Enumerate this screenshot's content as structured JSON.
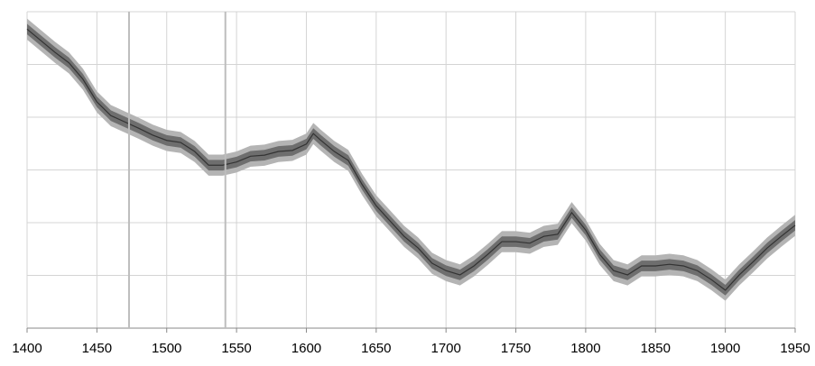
{
  "chart_data": {
    "type": "band-line",
    "x": [
      1400,
      1410,
      1420,
      1430,
      1440,
      1450,
      1460,
      1470,
      1480,
      1490,
      1500,
      1510,
      1520,
      1530,
      1540,
      1550,
      1560,
      1570,
      1580,
      1590,
      1600,
      1605,
      1610,
      1620,
      1630,
      1640,
      1650,
      1660,
      1670,
      1680,
      1690,
      1700,
      1710,
      1720,
      1730,
      1740,
      1750,
      1760,
      1770,
      1780,
      1790,
      1800,
      1810,
      1820,
      1830,
      1840,
      1850,
      1860,
      1870,
      1880,
      1890,
      1900,
      1910,
      1920,
      1930,
      1940,
      1950
    ],
    "values": [
      5.67,
      5.45,
      5.23,
      5.03,
      4.72,
      4.29,
      4.03,
      3.91,
      3.79,
      3.66,
      3.56,
      3.52,
      3.35,
      3.09,
      3.09,
      3.15,
      3.26,
      3.28,
      3.35,
      3.37,
      3.49,
      3.69,
      3.57,
      3.35,
      3.18,
      2.72,
      2.32,
      2.03,
      1.74,
      1.52,
      1.23,
      1.09,
      1.01,
      1.18,
      1.4,
      1.64,
      1.64,
      1.61,
      1.74,
      1.78,
      2.19,
      1.86,
      1.4,
      1.09,
      1.01,
      1.18,
      1.18,
      1.21,
      1.18,
      1.09,
      0.92,
      0.72,
      1.01,
      1.26,
      1.52,
      1.74,
      1.95
    ],
    "band_inner": 0.1,
    "band_outer": 0.2,
    "color": "#333333",
    "inner_color": "#6e6e6e",
    "outer_color": "#b4b4b4",
    "markers": [
      1473,
      1542
    ],
    "marker_color": "#bdbdbd",
    "xlim": [
      1400,
      1950
    ],
    "xticks": [
      1400,
      1450,
      1500,
      1550,
      1600,
      1650,
      1700,
      1750,
      1800,
      1850,
      1900,
      1950
    ],
    "ylim": [
      0,
      6
    ],
    "yticks": [
      0,
      1,
      2,
      3,
      4,
      5,
      6
    ],
    "grid": true
  }
}
